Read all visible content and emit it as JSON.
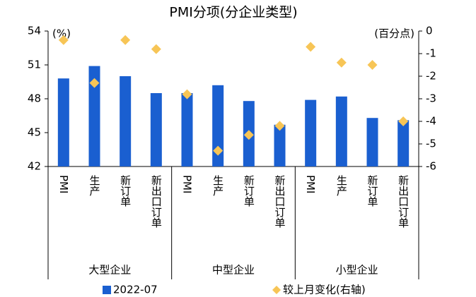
{
  "chart_data": {
    "type": "bar",
    "title": "PMI分项(分企业类型)",
    "y_label": "(%)",
    "y2_label": "(百分点)",
    "categories": [
      "PMI",
      "生产",
      "新订单",
      "新出口订单",
      "PMI",
      "生产",
      "新订单",
      "新出口订单",
      "PMI",
      "生产",
      "新订单",
      "新出口订单"
    ],
    "groups": [
      "大型企业",
      "中型企业",
      "小型企业"
    ],
    "series": [
      {
        "name": "2022-07",
        "type": "bar",
        "color": "#1a5fd0",
        "values": [
          49.8,
          50.9,
          50.0,
          48.5,
          48.5,
          49.2,
          47.8,
          45.7,
          47.9,
          48.2,
          46.3,
          46.1
        ]
      },
      {
        "name": "较上月变化(右轴)",
        "type": "scatter",
        "axis": "y2",
        "color": "#f7c556",
        "values": [
          -0.4,
          -2.3,
          -0.4,
          -0.8,
          -2.8,
          -5.3,
          -4.6,
          -4.2,
          -0.7,
          -1.4,
          -1.5,
          -4.0
        ]
      }
    ],
    "ylim": [
      42,
      54
    ],
    "yticks": [
      42,
      45,
      48,
      51,
      54
    ],
    "y2lim": [
      -6,
      0
    ],
    "y2ticks": [
      0,
      -1,
      -2,
      -3,
      -4,
      -5,
      -6
    ]
  }
}
